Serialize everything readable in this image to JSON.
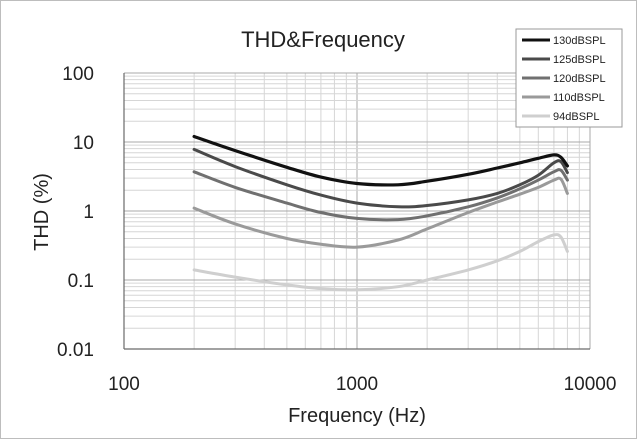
{
  "chart_data": {
    "type": "line",
    "title": "THD&Frequency",
    "xlabel": "Frequency (Hz)",
    "ylabel": "THD (%)",
    "x_scale": "log",
    "y_scale": "log",
    "xlim": [
      100,
      10000
    ],
    "ylim": [
      0.01,
      100
    ],
    "x_ticks": [
      "100",
      "1000",
      "10000"
    ],
    "y_ticks": [
      "100",
      "10",
      "1",
      "0.1",
      "0.01"
    ],
    "grid": true,
    "legend_position": "top-right",
    "series": [
      {
        "name": "130dBSPL",
        "color": "#111111",
        "width": 3.2,
        "x": [
          200,
          300,
          500,
          700,
          1000,
          1500,
          2000,
          3000,
          4000,
          5000,
          6000,
          7000,
          7500,
          8000
        ],
        "y": [
          12,
          7.5,
          4.3,
          3.1,
          2.5,
          2.4,
          2.7,
          3.4,
          4.2,
          5.0,
          5.8,
          6.5,
          6.0,
          4.5
        ]
      },
      {
        "name": "125dBSPL",
        "color": "#4a4a4a",
        "width": 3.0,
        "x": [
          200,
          300,
          500,
          700,
          1000,
          1500,
          2000,
          3000,
          4000,
          5000,
          6000,
          7000,
          7500,
          8000
        ],
        "y": [
          7.8,
          4.4,
          2.4,
          1.7,
          1.3,
          1.15,
          1.2,
          1.45,
          1.8,
          2.4,
          3.3,
          5.0,
          5.2,
          3.6
        ]
      },
      {
        "name": "120dBSPL",
        "color": "#707070",
        "width": 3.0,
        "x": [
          200,
          300,
          500,
          700,
          1000,
          1500,
          2000,
          3000,
          4000,
          5000,
          6000,
          7000,
          7500,
          8000
        ],
        "y": [
          3.7,
          2.2,
          1.3,
          0.95,
          0.78,
          0.75,
          0.85,
          1.15,
          1.55,
          2.1,
          2.8,
          3.7,
          3.9,
          2.8
        ]
      },
      {
        "name": "110dBSPL",
        "color": "#9a9a9a",
        "width": 3.0,
        "x": [
          200,
          300,
          500,
          700,
          1000,
          1500,
          2000,
          3000,
          4000,
          5000,
          6000,
          7000,
          7500,
          8000
        ],
        "y": [
          1.1,
          0.65,
          0.4,
          0.33,
          0.3,
          0.38,
          0.55,
          0.95,
          1.35,
          1.75,
          2.2,
          2.8,
          2.9,
          1.8
        ]
      },
      {
        "name": "94dBSPL",
        "color": "#cfcfcf",
        "width": 3.0,
        "x": [
          200,
          300,
          500,
          700,
          1000,
          1500,
          2000,
          3000,
          4000,
          5000,
          6000,
          7000,
          7500,
          8000
        ],
        "y": [
          0.14,
          0.11,
          0.085,
          0.075,
          0.072,
          0.08,
          0.1,
          0.14,
          0.19,
          0.26,
          0.36,
          0.45,
          0.42,
          0.26
        ]
      }
    ]
  }
}
